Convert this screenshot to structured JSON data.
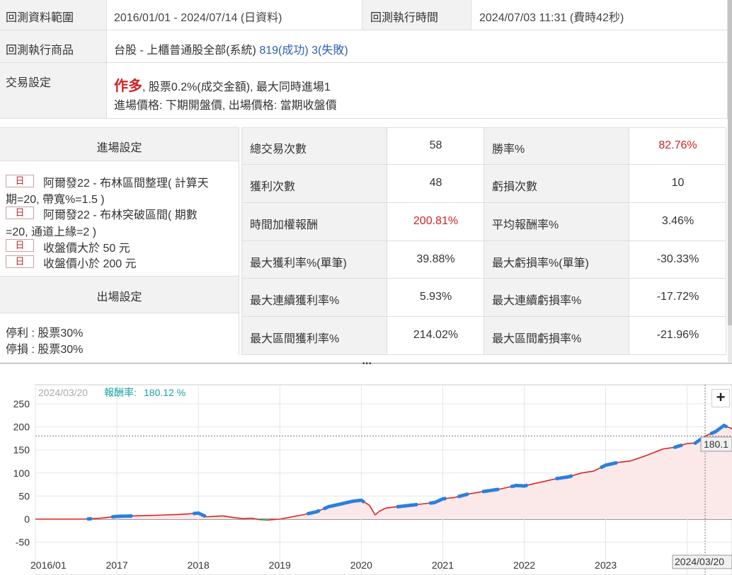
{
  "header": {
    "data_range_label": "回測資料範圍",
    "data_range_value": "2016/01/01 - 2024/07/14 (日資料)",
    "exec_time_label": "回測執行時間",
    "exec_time_value": "2024/07/03 11:31 (費時42秒)",
    "product_label": "回測執行商品",
    "product_value": "台股 - 上櫃普通股全部(系統)",
    "product_success": "819(成功)",
    "product_fail": "3(失敗)",
    "trade_label": "交易設定",
    "trade_direction": "作多",
    "trade_line1_rest": ", 股票0.2%(成交金額), 最大同時進場1",
    "trade_line2": "進場價格: 下期開盤價, 出場價格: 當期收盤價"
  },
  "entry": {
    "title": "進場設定",
    "rules": [
      {
        "tag": "日",
        "text_line1": "阿爾發22 - 布林區間整理( 計算天",
        "text_line2": "期=20, 帶寬%=1.5 )"
      },
      {
        "tag": "日",
        "text_line1": "阿爾發22 - 布林突破區間( 期數",
        "text_line2": "=20, 通道上緣=2 )"
      },
      {
        "tag": "日",
        "text_line1": "收盤價大於 50 元"
      },
      {
        "tag": "日",
        "text_line1": "收盤價小於 200 元"
      }
    ]
  },
  "exit": {
    "title": "出場設定",
    "take_profit": "停利 : 股票30%",
    "stop_loss": "停損 : 股票30%"
  },
  "stats": [
    {
      "l1": "總交易次數",
      "v1": "58",
      "v1_red": false,
      "l2": "勝率%",
      "v2": "82.76%",
      "v2_red": true
    },
    {
      "l1": "獲利次數",
      "v1": "48",
      "v1_red": false,
      "l2": "虧損次數",
      "v2": "10",
      "v2_red": false
    },
    {
      "l1": "時間加權報酬",
      "v1": "200.81%",
      "v1_red": true,
      "l2": "平均報酬率%",
      "v2": "3.46%",
      "v2_red": false
    },
    {
      "l1": "最大獲利率%(單筆)",
      "v1": "39.88%",
      "v1_red": false,
      "l2": "最大虧損率%(單筆)",
      "v2": "-30.33%",
      "v2_red": false
    },
    {
      "l1": "最大連續獲利率%",
      "v1": "5.93%",
      "v1_red": false,
      "l2": "最大連續虧損率%",
      "v2": "-17.72%",
      "v2_red": false
    },
    {
      "l1": "最大區間獲利率%",
      "v1": "214.02%",
      "v1_red": false,
      "l2": "最大區間虧損率%",
      "v2": "-21.96%",
      "v2_red": false
    }
  ],
  "splitter": "•••",
  "chart_overlay": {
    "date": "2024/03/20",
    "return_label": "報酬率:",
    "return_value": "180.12 %",
    "value_tag": "180.1",
    "cursor_date": "2024/03/20",
    "zoom_label": "+"
  },
  "colors": {
    "line_up": "#e02020",
    "line_down": "#1a9a1a",
    "holding_marker": "#2a7fe0",
    "fill": "#fbe9e9",
    "return_text": "#19a3a3"
  },
  "chart_data": {
    "type": "area",
    "title": "",
    "xlabel": "",
    "ylabel": "",
    "ylim": [
      -60,
      260
    ],
    "yticks": [
      "250",
      "200",
      "150",
      "100",
      "50",
      "0",
      "-50"
    ],
    "ytick_values": [
      250,
      200,
      150,
      100,
      50,
      0,
      -50
    ],
    "xticks": [
      "2016/01",
      "2017",
      "2018",
      "2019",
      "2020",
      "2021",
      "2022",
      "2023",
      "2024"
    ],
    "xtick_values": [
      2016.0,
      2017.0,
      2018.0,
      2019.0,
      2020.0,
      2021.0,
      2022.0,
      2023.0,
      2024.0
    ],
    "xlim": [
      2016.0,
      2024.55
    ],
    "series": [
      {
        "x": [
          2016.0,
          2016.6,
          2016.8,
          2017.0,
          2017.2,
          2017.4,
          2017.6,
          2017.75,
          2017.85,
          2018.0,
          2018.1,
          2018.2,
          2018.3,
          2018.45,
          2018.55,
          2018.65,
          2018.75,
          2018.85,
          2019.0,
          2019.15,
          2019.3,
          2019.45,
          2019.6,
          2019.75,
          2019.9,
          2020.0,
          2020.1,
          2020.17,
          2020.22,
          2020.3,
          2020.45,
          2020.6,
          2020.75,
          2020.9,
          2021.0,
          2021.15,
          2021.3,
          2021.5,
          2021.7,
          2021.9,
          2022.0,
          2022.2,
          2022.4,
          2022.55,
          2022.7,
          2022.85,
          2023.0,
          2023.15,
          2023.3,
          2023.5,
          2023.7,
          2023.85,
          2024.0,
          2024.1,
          2024.22,
          2024.35,
          2024.45,
          2024.55
        ],
        "y": [
          0,
          0,
          2,
          6,
          7,
          8,
          9,
          10,
          11,
          13,
          5,
          6,
          7,
          3,
          1,
          2,
          -1,
          -2,
          0,
          5,
          10,
          16,
          27,
          33,
          39,
          41,
          30,
          9,
          17,
          24,
          27,
          30,
          33,
          36,
          44,
          47,
          54,
          60,
          65,
          73,
          72,
          80,
          88,
          92,
          100,
          104,
          117,
          123,
          126,
          138,
          152,
          156,
          164,
          165,
          180,
          190,
          203,
          196
        ]
      }
    ],
    "holdings_note": "blue markers show periods in position"
  }
}
